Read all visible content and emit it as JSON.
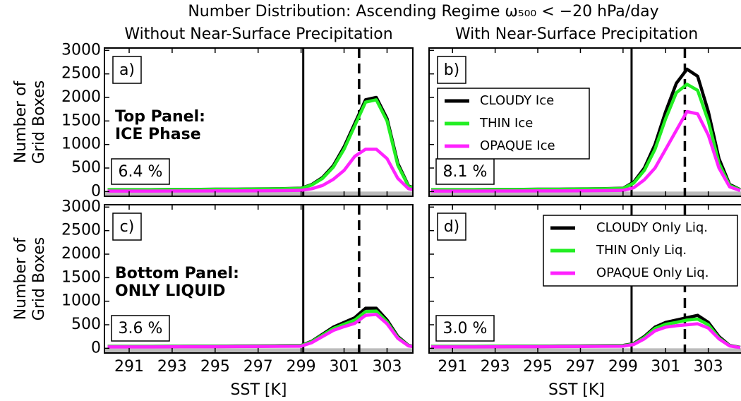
{
  "title": "Number Distribution: Ascending Regime ω₅₀₀ < −20 hPa/day",
  "chart_data": [
    {
      "type": "line",
      "subtitle": "Without Near-Surface Precipitation",
      "panel_label": "a)",
      "annotation": [
        "Top Panel:",
        "ICE Phase"
      ],
      "percent": "6.4 %",
      "ylabel": [
        "Number of",
        "Grid Boxes"
      ],
      "x": [
        290,
        291,
        292,
        293,
        294,
        295,
        296,
        297,
        298,
        299,
        299.5,
        300,
        300.5,
        301,
        301.5,
        302,
        302.5,
        303,
        303.5,
        304,
        304.5
      ],
      "series": [
        {
          "color": "#000000",
          "values": [
            40,
            40,
            40,
            45,
            45,
            50,
            50,
            55,
            60,
            70,
            150,
            300,
            550,
            950,
            1450,
            1950,
            2000,
            1550,
            600,
            120,
            40
          ]
        },
        {
          "color": "#22ee22",
          "values": [
            38,
            38,
            38,
            42,
            42,
            47,
            47,
            52,
            57,
            65,
            140,
            280,
            520,
            900,
            1400,
            1900,
            1950,
            1500,
            560,
            110,
            35
          ]
        },
        {
          "color": "#ff22ff",
          "values": [
            10,
            10,
            10,
            12,
            12,
            15,
            15,
            17,
            20,
            25,
            60,
            130,
            260,
            450,
            750,
            900,
            900,
            700,
            280,
            60,
            15
          ]
        }
      ],
      "vlines": {
        "solid": 299.1,
        "dashed": 301.7
      },
      "xlim": [
        289.85,
        304.2
      ],
      "xticks": [
        291,
        293,
        295,
        297,
        299,
        301,
        303
      ],
      "ylim": [
        -100,
        3050
      ],
      "yticks": [
        0,
        500,
        1000,
        1500,
        2000,
        2500,
        3000
      ]
    },
    {
      "type": "line",
      "subtitle": "With Near-Surface Precipitation",
      "panel_label": "b)",
      "percent": "8.1 %",
      "x": [
        290,
        291,
        292,
        293,
        294,
        295,
        296,
        297,
        298,
        299,
        299.5,
        300,
        300.5,
        301,
        301.5,
        302,
        302.5,
        303,
        303.5,
        304,
        304.5
      ],
      "series": [
        {
          "name": "CLOUDY Ice",
          "color": "#000000",
          "values": [
            40,
            40,
            40,
            45,
            45,
            50,
            50,
            55,
            60,
            70,
            200,
            500,
            1000,
            1700,
            2300,
            2600,
            2450,
            1700,
            700,
            150,
            40
          ]
        },
        {
          "name": "THIN Ice",
          "color": "#22ee22",
          "values": [
            38,
            38,
            38,
            42,
            42,
            47,
            47,
            52,
            57,
            65,
            180,
            450,
            900,
            1550,
            2100,
            2280,
            2150,
            1500,
            600,
            130,
            35
          ]
        },
        {
          "name": "OPAQUE Ice",
          "color": "#ff22ff",
          "values": [
            10,
            10,
            10,
            12,
            12,
            15,
            15,
            17,
            20,
            25,
            80,
            250,
            500,
            900,
            1300,
            1700,
            1650,
            1200,
            500,
            100,
            20
          ]
        }
      ],
      "vlines": {
        "solid": 299.4,
        "dashed": 301.9
      },
      "xlim": [
        289.9,
        304.6
      ],
      "xticks": [
        291,
        293,
        295,
        297,
        299,
        301,
        303
      ],
      "ylim": [
        -100,
        3050
      ],
      "yticks": [
        0,
        500,
        1000,
        1500,
        2000,
        2500,
        3000
      ]
    },
    {
      "type": "line",
      "panel_label": "c)",
      "annotation": [
        "Bottom Panel:",
        "ONLY LIQUID"
      ],
      "percent": "3.6 %",
      "ylabel": [
        "Number of",
        "Grid Boxes"
      ],
      "xlabel": "SST [K]",
      "x": [
        290,
        291,
        292,
        293,
        294,
        295,
        296,
        297,
        298,
        299,
        299.5,
        300,
        300.5,
        301,
        301.5,
        302,
        302.5,
        303,
        303.5,
        304,
        304.5
      ],
      "series": [
        {
          "color": "#000000",
          "values": [
            40,
            40,
            40,
            42,
            45,
            45,
            48,
            50,
            55,
            60,
            150,
            300,
            450,
            550,
            650,
            850,
            850,
            600,
            250,
            60,
            20
          ]
        },
        {
          "color": "#22ee22",
          "values": [
            38,
            38,
            38,
            40,
            42,
            42,
            45,
            47,
            52,
            55,
            140,
            280,
            420,
            510,
            600,
            780,
            790,
            560,
            230,
            55,
            18
          ]
        },
        {
          "color": "#ff22ff",
          "values": [
            30,
            30,
            30,
            32,
            34,
            34,
            36,
            38,
            42,
            45,
            120,
            250,
            380,
            460,
            530,
            700,
            720,
            520,
            210,
            50,
            15
          ]
        }
      ],
      "vlines": {
        "solid": 299.1,
        "dashed": 301.7
      },
      "xlim": [
        289.85,
        304.2
      ],
      "xticks": [
        291,
        293,
        295,
        297,
        299,
        301,
        303
      ],
      "ylim": [
        -100,
        3050
      ],
      "yticks": [
        0,
        500,
        1000,
        1500,
        2000,
        2500,
        3000
      ]
    },
    {
      "type": "line",
      "panel_label": "d)",
      "percent": "3.0 %",
      "xlabel": "SST [K]",
      "x": [
        290,
        291,
        292,
        293,
        294,
        295,
        296,
        297,
        298,
        299,
        299.5,
        300,
        300.5,
        301,
        301.5,
        302,
        302.5,
        303,
        303.5,
        304,
        304.5
      ],
      "series": [
        {
          "name": "CLOUDY Only Liq.",
          "color": "#000000",
          "values": [
            40,
            40,
            40,
            42,
            45,
            45,
            48,
            50,
            55,
            60,
            100,
            250,
            450,
            550,
            600,
            650,
            700,
            550,
            250,
            60,
            20
          ]
        },
        {
          "name": "THIN Only Liq.",
          "color": "#22ee22",
          "values": [
            38,
            38,
            38,
            40,
            42,
            42,
            45,
            47,
            52,
            55,
            90,
            230,
            420,
            510,
            550,
            600,
            620,
            500,
            220,
            55,
            18
          ]
        },
        {
          "name": "OPAQUE Only Liq.",
          "color": "#ff22ff",
          "values": [
            30,
            30,
            30,
            32,
            34,
            34,
            36,
            38,
            42,
            45,
            80,
            200,
            370,
            450,
            480,
            500,
            520,
            430,
            200,
            50,
            15
          ]
        }
      ],
      "vlines": {
        "solid": 299.4,
        "dashed": 301.9
      },
      "xlim": [
        289.9,
        304.6
      ],
      "xticks": [
        291,
        293,
        295,
        297,
        299,
        301,
        303
      ],
      "ylim": [
        -100,
        3050
      ],
      "yticks": [
        0,
        500,
        1000,
        1500,
        2000,
        2500,
        3000
      ]
    }
  ]
}
